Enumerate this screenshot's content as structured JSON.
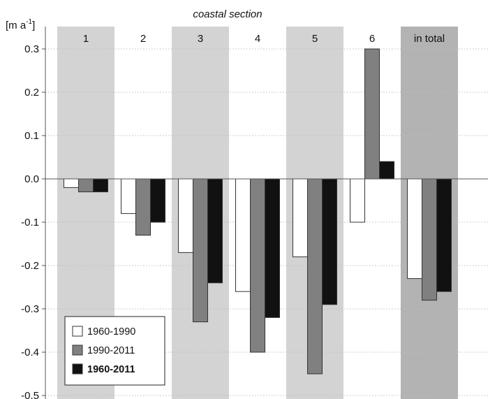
{
  "chart_data": {
    "type": "bar",
    "title": "coastal section",
    "ylabel": "[m a",
    "ylabel_sup": "-1",
    "categories": [
      "1",
      "2",
      "3",
      "4",
      "5",
      "6",
      "in total"
    ],
    "shaded_categories": [
      true,
      false,
      true,
      false,
      true,
      false,
      true
    ],
    "ylim": [
      -0.5,
      0.3
    ],
    "yticks": [
      0.3,
      0.2,
      0.1,
      0.0,
      -0.1,
      -0.2,
      -0.3,
      -0.4,
      -0.5
    ],
    "ytick_labels": [
      "0.3",
      "0.2",
      "0.1",
      "0.0",
      "-0.1",
      "-0.2",
      "-0.3",
      "-0.4",
      "-0.5"
    ],
    "grid": true,
    "legend_position": "bottom-left",
    "series": [
      {
        "name": "1960-1990",
        "color": "#ffffff",
        "bold": false,
        "values": [
          -0.02,
          -0.08,
          -0.17,
          -0.26,
          -0.18,
          -0.1,
          -0.23
        ]
      },
      {
        "name": "1990-2011",
        "color": "#808080",
        "bold": false,
        "values": [
          -0.03,
          -0.13,
          -0.33,
          -0.4,
          -0.45,
          0.3,
          -0.28
        ]
      },
      {
        "name": "1960-2011",
        "color": "#111111",
        "bold": true,
        "values": [
          -0.03,
          -0.1,
          -0.24,
          -0.32,
          -0.29,
          0.04,
          -0.26
        ]
      }
    ],
    "colors": {
      "band_light": "#d3d3d3",
      "band_dark": "#b3b3b3",
      "grid": "#bdbdbd",
      "axis": "#555555",
      "outline": "#333333"
    }
  }
}
